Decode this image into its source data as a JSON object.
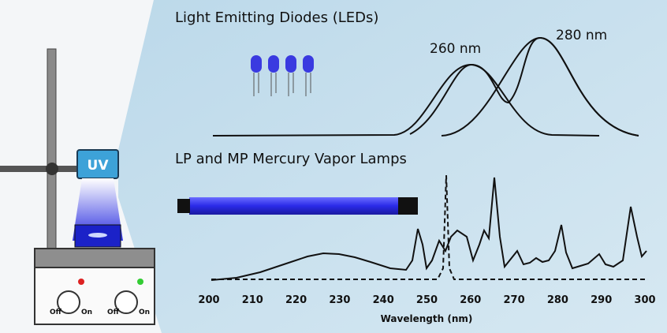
{
  "leds": {
    "title": "Light Emitting Diodes (LEDs)",
    "peak_labels": [
      "260 nm",
      "280 nm"
    ]
  },
  "lamps": {
    "title": "LP and MP Mercury Vapor Lamps"
  },
  "axis": {
    "label": "Wavelength (nm)",
    "ticks": [
      200,
      210,
      220,
      230,
      240,
      250,
      260,
      270,
      280,
      290,
      300
    ]
  },
  "device": {
    "uv_label": "UV",
    "knobs": [
      {
        "off": "Off",
        "on": "On"
      },
      {
        "off": "Off",
        "on": "On"
      }
    ]
  }
}
